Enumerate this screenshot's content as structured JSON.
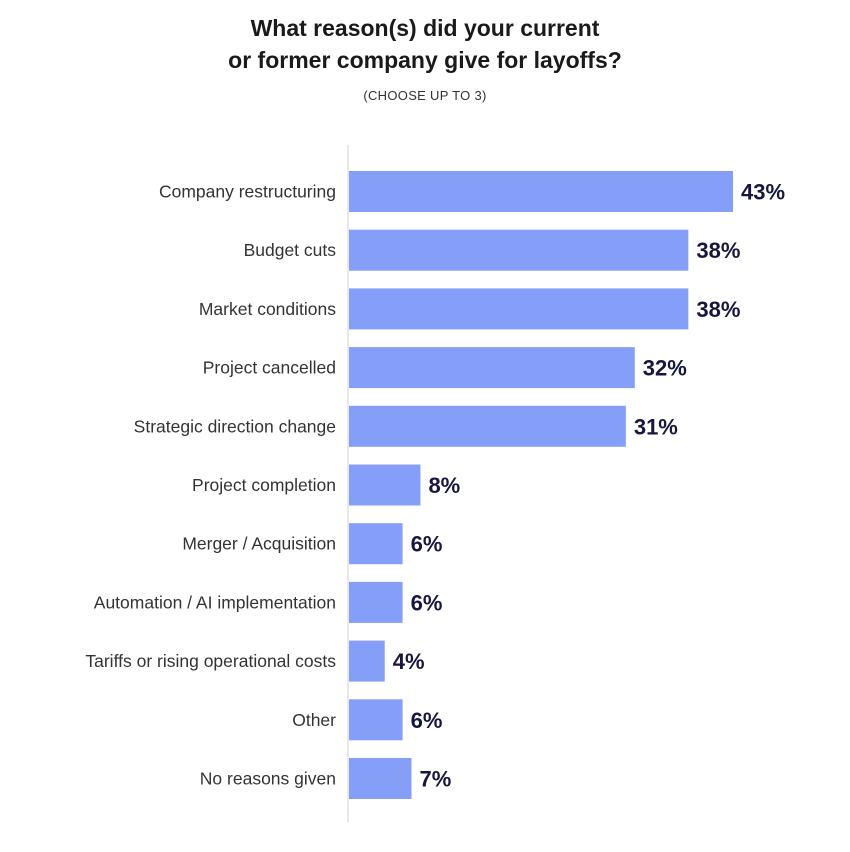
{
  "chart_data": {
    "type": "bar",
    "orientation": "horizontal",
    "title_lines": [
      "What reason(s) did your current",
      "or former company give for layoffs?"
    ],
    "subtitle": "(CHOOSE UP TO 3)",
    "categories": [
      "Company restructuring",
      "Budget cuts",
      "Market conditions",
      "Project cancelled",
      "Strategic direction change",
      "Project completion",
      "Merger / Acquisition",
      "Automation / AI implementation",
      "Tariffs or rising operational costs",
      "Other",
      "No reasons given"
    ],
    "values": [
      43,
      38,
      38,
      32,
      31,
      8,
      6,
      6,
      4,
      6,
      7
    ],
    "value_labels": [
      "43%",
      "38%",
      "38%",
      "32%",
      "31%",
      "8%",
      "6%",
      "6%",
      "4%",
      "6%",
      "7%"
    ],
    "xlim": [
      0,
      43
    ],
    "grid": false,
    "colors": {
      "bar": "#859ef7",
      "value_label": "#16163f",
      "axis": "#d0d0d0",
      "category_label": "#333333"
    }
  }
}
